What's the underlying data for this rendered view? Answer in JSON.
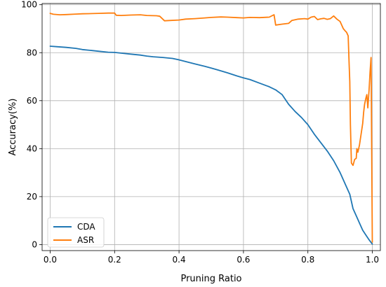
{
  "chart_data": {
    "type": "line",
    "title": "",
    "xlabel": "Pruning Ratio",
    "ylabel": "Accuracy(%)",
    "xlim": [
      -0.025,
      1.025
    ],
    "ylim": [
      -2.5,
      100.5
    ],
    "xticks": [
      0.0,
      0.2,
      0.4,
      0.6,
      0.8,
      1.0
    ],
    "xtick_labels": [
      "0.0",
      "0.2",
      "0.4",
      "0.6",
      "0.8",
      "1.0"
    ],
    "yticks": [
      0,
      20,
      40,
      60,
      80,
      100
    ],
    "ytick_labels": [
      "0",
      "20",
      "40",
      "60",
      "80",
      "100"
    ],
    "grid": true,
    "legend_position": "bottom-left",
    "series": [
      {
        "name": "CDA",
        "color": "#1f77b4",
        "points": [
          [
            0.0,
            82.7
          ],
          [
            0.02,
            82.5
          ],
          [
            0.05,
            82.2
          ],
          [
            0.08,
            81.8
          ],
          [
            0.1,
            81.3
          ],
          [
            0.13,
            80.9
          ],
          [
            0.15,
            80.6
          ],
          [
            0.18,
            80.2
          ],
          [
            0.2,
            80.1
          ],
          [
            0.22,
            79.8
          ],
          [
            0.25,
            79.4
          ],
          [
            0.28,
            79.0
          ],
          [
            0.3,
            78.6
          ],
          [
            0.32,
            78.3
          ],
          [
            0.35,
            78.0
          ],
          [
            0.38,
            77.6
          ],
          [
            0.4,
            77.0
          ],
          [
            0.42,
            76.3
          ],
          [
            0.45,
            75.3
          ],
          [
            0.48,
            74.3
          ],
          [
            0.5,
            73.6
          ],
          [
            0.52,
            72.8
          ],
          [
            0.55,
            71.6
          ],
          [
            0.58,
            70.3
          ],
          [
            0.6,
            69.5
          ],
          [
            0.62,
            68.8
          ],
          [
            0.65,
            67.3
          ],
          [
            0.68,
            65.8
          ],
          [
            0.7,
            64.5
          ],
          [
            0.72,
            62.5
          ],
          [
            0.74,
            58.5
          ],
          [
            0.76,
            55.5
          ],
          [
            0.78,
            53.0
          ],
          [
            0.8,
            50.0
          ],
          [
            0.82,
            46.0
          ],
          [
            0.84,
            42.5
          ],
          [
            0.86,
            39.0
          ],
          [
            0.88,
            35.0
          ],
          [
            0.9,
            30.0
          ],
          [
            0.92,
            24.0
          ],
          [
            0.93,
            21.0
          ],
          [
            0.94,
            15.0
          ],
          [
            0.95,
            12.0
          ],
          [
            0.96,
            9.0
          ],
          [
            0.97,
            6.0
          ],
          [
            0.98,
            4.0
          ],
          [
            0.99,
            2.0
          ],
          [
            1.0,
            0.2
          ]
        ]
      },
      {
        "name": "ASR",
        "color": "#ff7f0e",
        "points": [
          [
            0.0,
            96.4
          ],
          [
            0.01,
            96.0
          ],
          [
            0.03,
            95.8
          ],
          [
            0.05,
            95.9
          ],
          [
            0.08,
            96.1
          ],
          [
            0.1,
            96.2
          ],
          [
            0.13,
            96.3
          ],
          [
            0.15,
            96.4
          ],
          [
            0.18,
            96.5
          ],
          [
            0.2,
            96.5
          ],
          [
            0.205,
            95.6
          ],
          [
            0.22,
            95.5
          ],
          [
            0.25,
            95.7
          ],
          [
            0.28,
            95.8
          ],
          [
            0.3,
            95.5
          ],
          [
            0.33,
            95.4
          ],
          [
            0.34,
            95.2
          ],
          [
            0.355,
            93.3
          ],
          [
            0.37,
            93.4
          ],
          [
            0.4,
            93.6
          ],
          [
            0.42,
            94.0
          ],
          [
            0.45,
            94.2
          ],
          [
            0.48,
            94.5
          ],
          [
            0.5,
            94.7
          ],
          [
            0.53,
            94.9
          ],
          [
            0.55,
            94.8
          ],
          [
            0.58,
            94.6
          ],
          [
            0.6,
            94.5
          ],
          [
            0.62,
            94.7
          ],
          [
            0.65,
            94.6
          ],
          [
            0.68,
            94.8
          ],
          [
            0.695,
            95.8
          ],
          [
            0.7,
            91.5
          ],
          [
            0.72,
            91.9
          ],
          [
            0.74,
            92.2
          ],
          [
            0.75,
            93.4
          ],
          [
            0.77,
            94.0
          ],
          [
            0.79,
            94.2
          ],
          [
            0.8,
            94.0
          ],
          [
            0.81,
            94.8
          ],
          [
            0.82,
            95.1
          ],
          [
            0.83,
            93.8
          ],
          [
            0.84,
            94.1
          ],
          [
            0.85,
            94.3
          ],
          [
            0.86,
            93.9
          ],
          [
            0.87,
            94.2
          ],
          [
            0.88,
            95.3
          ],
          [
            0.89,
            94.0
          ],
          [
            0.9,
            93.0
          ],
          [
            0.91,
            90.0
          ],
          [
            0.915,
            89.2
          ],
          [
            0.92,
            88.5
          ],
          [
            0.925,
            87.0
          ],
          [
            0.928,
            75.0
          ],
          [
            0.93,
            68.0
          ],
          [
            0.932,
            50.0
          ],
          [
            0.935,
            34.0
          ],
          [
            0.94,
            33.0
          ],
          [
            0.945,
            35.5
          ],
          [
            0.95,
            36.0
          ],
          [
            0.952,
            40.0
          ],
          [
            0.955,
            38.5
          ],
          [
            0.96,
            41.5
          ],
          [
            0.965,
            46.0
          ],
          [
            0.97,
            50.5
          ],
          [
            0.973,
            55.0
          ],
          [
            0.976,
            58.5
          ],
          [
            0.98,
            61.0
          ],
          [
            0.983,
            62.5
          ],
          [
            0.986,
            57.0
          ],
          [
            0.99,
            64.5
          ],
          [
            0.993,
            72.0
          ],
          [
            0.996,
            78.0
          ],
          [
            0.998,
            40.0
          ],
          [
            1.0,
            1.0
          ]
        ]
      }
    ]
  }
}
